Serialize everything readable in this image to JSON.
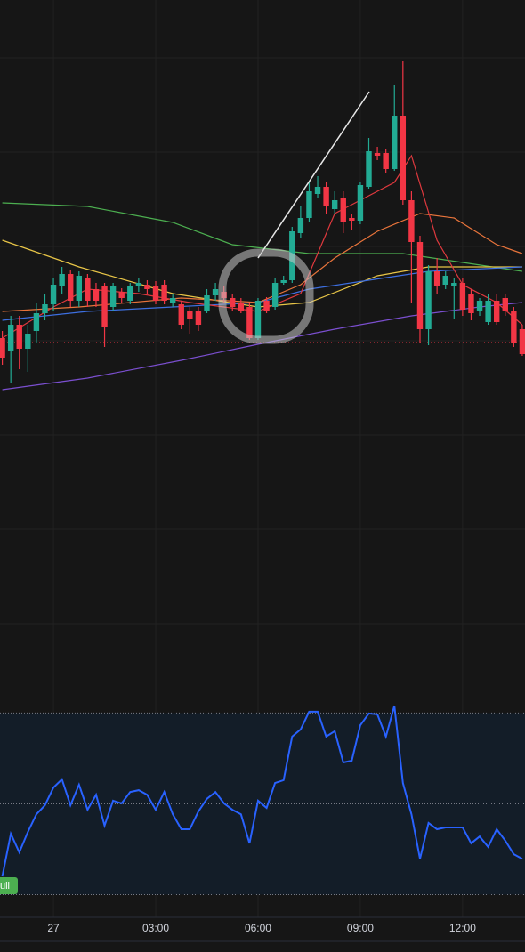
{
  "chart_data": [
    {
      "type": "candlestick",
      "x": [
        0,
        1,
        2,
        3,
        4,
        5,
        6,
        7,
        8,
        9,
        10,
        11,
        12,
        13,
        14,
        15,
        16,
        17,
        18,
        19,
        20,
        21,
        22,
        23,
        24,
        25,
        26,
        27,
        28,
        29,
        30,
        31,
        32,
        33,
        34,
        35,
        36,
        37,
        38,
        39,
        40,
        41,
        42,
        43,
        44,
        45,
        46,
        47,
        48,
        49,
        50,
        51,
        52,
        53,
        54,
        55,
        56,
        57,
        58,
        59,
        60,
        61
      ],
      "open": [
        620,
        605,
        635,
        608,
        628,
        648,
        658,
        678,
        692,
        662,
        688,
        675,
        678,
        655,
        672,
        662,
        678,
        680,
        678,
        680,
        660,
        658,
        650,
        650,
        650,
        668,
        672,
        665,
        660,
        655,
        620,
        662,
        655,
        682,
        685,
        738,
        755,
        782,
        790,
        765,
        778,
        755,
        752,
        790,
        828,
        828,
        810,
        870,
        775,
        728,
        630,
        695,
        680,
        678,
        682,
        670,
        650,
        638,
        662,
        665,
        650,
        630
      ],
      "high": [
        628,
        645,
        645,
        635,
        660,
        670,
        688,
        700,
        697,
        695,
        692,
        682,
        682,
        682,
        676,
        682,
        688,
        685,
        684,
        685,
        670,
        662,
        655,
        655,
        675,
        682,
        678,
        670,
        665,
        660,
        665,
        666,
        688,
        690,
        745,
        768,
        795,
        802,
        795,
        785,
        785,
        760,
        795,
        845,
        835,
        832,
        905,
        932,
        785,
        735,
        702,
        710,
        695,
        688,
        688,
        675,
        665,
        670,
        670,
        670,
        655,
        635
      ],
      "low": [
        590,
        570,
        585,
        582,
        615,
        640,
        650,
        670,
        655,
        655,
        655,
        655,
        610,
        650,
        660,
        658,
        672,
        670,
        658,
        658,
        655,
        630,
        625,
        628,
        648,
        662,
        660,
        650,
        648,
        618,
        618,
        648,
        652,
        680,
        682,
        732,
        750,
        778,
        760,
        760,
        738,
        742,
        748,
        788,
        820,
        805,
        808,
        770,
        660,
        615,
        612,
        670,
        675,
        642,
        645,
        640,
        645,
        635,
        635,
        645,
        610,
        600
      ],
      "close": [
        598,
        635,
        608,
        625,
        648,
        658,
        680,
        692,
        662,
        690,
        662,
        662,
        632,
        678,
        665,
        678,
        682,
        675,
        662,
        662,
        665,
        635,
        642,
        635,
        668,
        675,
        665,
        655,
        650,
        620,
        662,
        650,
        682,
        685,
        740,
        755,
        785,
        790,
        768,
        775,
        750,
        752,
        792,
        830,
        825,
        810,
        870,
        775,
        728,
        630,
        695,
        678,
        690,
        682,
        652,
        648,
        662,
        662,
        638,
        650,
        615,
        602
      ],
      "up_color": "#22ab94",
      "down_color": "#f23645",
      "xlim": [
        -0.27,
        61.32
      ],
      "ylim": [
        220,
        1000
      ],
      "price_line": 615,
      "price_line_color": "#f23645",
      "overlays": [
        {
          "color": "#4caf50",
          "x": [
            0,
            10,
            20,
            27,
            36,
            47,
            54,
            61
          ],
          "values": [
            772,
            768,
            750,
            725,
            715,
            715,
            705,
            695
          ]
        },
        {
          "color": "#e8c547",
          "x": [
            0,
            9,
            20,
            30,
            36,
            44,
            50,
            61
          ],
          "values": [
            730,
            700,
            670,
            655,
            660,
            690,
            700,
            700
          ]
        },
        {
          "color": "#3d6fe0",
          "x": [
            0,
            10,
            20,
            30,
            36,
            43,
            50,
            61
          ],
          "values": [
            640,
            650,
            655,
            660,
            675,
            685,
            695,
            700
          ]
        },
        {
          "color": "#7b4fd0",
          "x": [
            0,
            10,
            21,
            31,
            39,
            48,
            56,
            61
          ],
          "values": [
            562,
            575,
            595,
            615,
            630,
            645,
            655,
            660
          ]
        },
        {
          "color": "#e8743b",
          "x": [
            0,
            9,
            21,
            30,
            35,
            39,
            44,
            49,
            53,
            58,
            61
          ],
          "values": [
            650,
            655,
            665,
            660,
            680,
            710,
            740,
            760,
            755,
            725,
            715
          ]
        },
        {
          "color": "#e0393e",
          "x": [
            0,
            6,
            10,
            16,
            22,
            26,
            30,
            35,
            39,
            42,
            46,
            48,
            51,
            54,
            58,
            61
          ],
          "values": [
            620,
            655,
            675,
            670,
            660,
            655,
            650,
            670,
            760,
            775,
            795,
            825,
            730,
            680,
            660,
            635
          ]
        }
      ]
    },
    {
      "type": "line",
      "x": [
        0,
        1,
        2,
        3,
        4,
        5,
        6,
        7,
        8,
        9,
        10,
        11,
        12,
        13,
        14,
        15,
        16,
        17,
        18,
        19,
        20,
        21,
        22,
        23,
        24,
        25,
        26,
        27,
        28,
        29,
        30,
        31,
        32,
        33,
        34,
        35,
        36,
        37,
        38,
        39,
        40,
        41,
        42,
        43,
        44,
        45,
        46,
        47,
        48,
        49,
        50,
        51,
        52,
        53,
        54,
        55,
        56,
        57,
        58,
        59,
        60,
        61
      ],
      "values": [
        34.0,
        43.4,
        39.3,
        43.8,
        47.7,
        49.7,
        53.6,
        55.4,
        49.7,
        54.2,
        48.7,
        52.0,
        45.2,
        50.7,
        50.1,
        52.6,
        53.0,
        52.0,
        48.7,
        52.6,
        47.7,
        44.4,
        44.4,
        48.3,
        51.1,
        52.6,
        50.1,
        48.7,
        47.7,
        41.3,
        50.7,
        49.1,
        54.6,
        55.2,
        64.8,
        66.4,
        70.3,
        70.3,
        64.8,
        66.0,
        59.1,
        59.5,
        67.3,
        69.9,
        69.7,
        64.8,
        71.6,
        54.6,
        47.7,
        37.9,
        45.8,
        44.4,
        44.8,
        44.8,
        44.8,
        41.3,
        42.8,
        40.5,
        44.4,
        41.9,
        38.9,
        37.9
      ],
      "color": "#2962ff",
      "xlim": [
        -0.27,
        61.32
      ],
      "ylim": [
        25,
        74
      ],
      "levels": [
        70,
        50,
        30
      ],
      "band_color": "#131d28",
      "badge": "ull",
      "badge_color": "#4caf50",
      "xticks": [
        {
          "value": 6,
          "label": "27"
        },
        {
          "value": 18,
          "label": "03:00"
        },
        {
          "value": 30,
          "label": "06:00"
        },
        {
          "value": 42,
          "label": "09:00"
        },
        {
          "value": 54,
          "label": "12:00"
        }
      ]
    }
  ]
}
